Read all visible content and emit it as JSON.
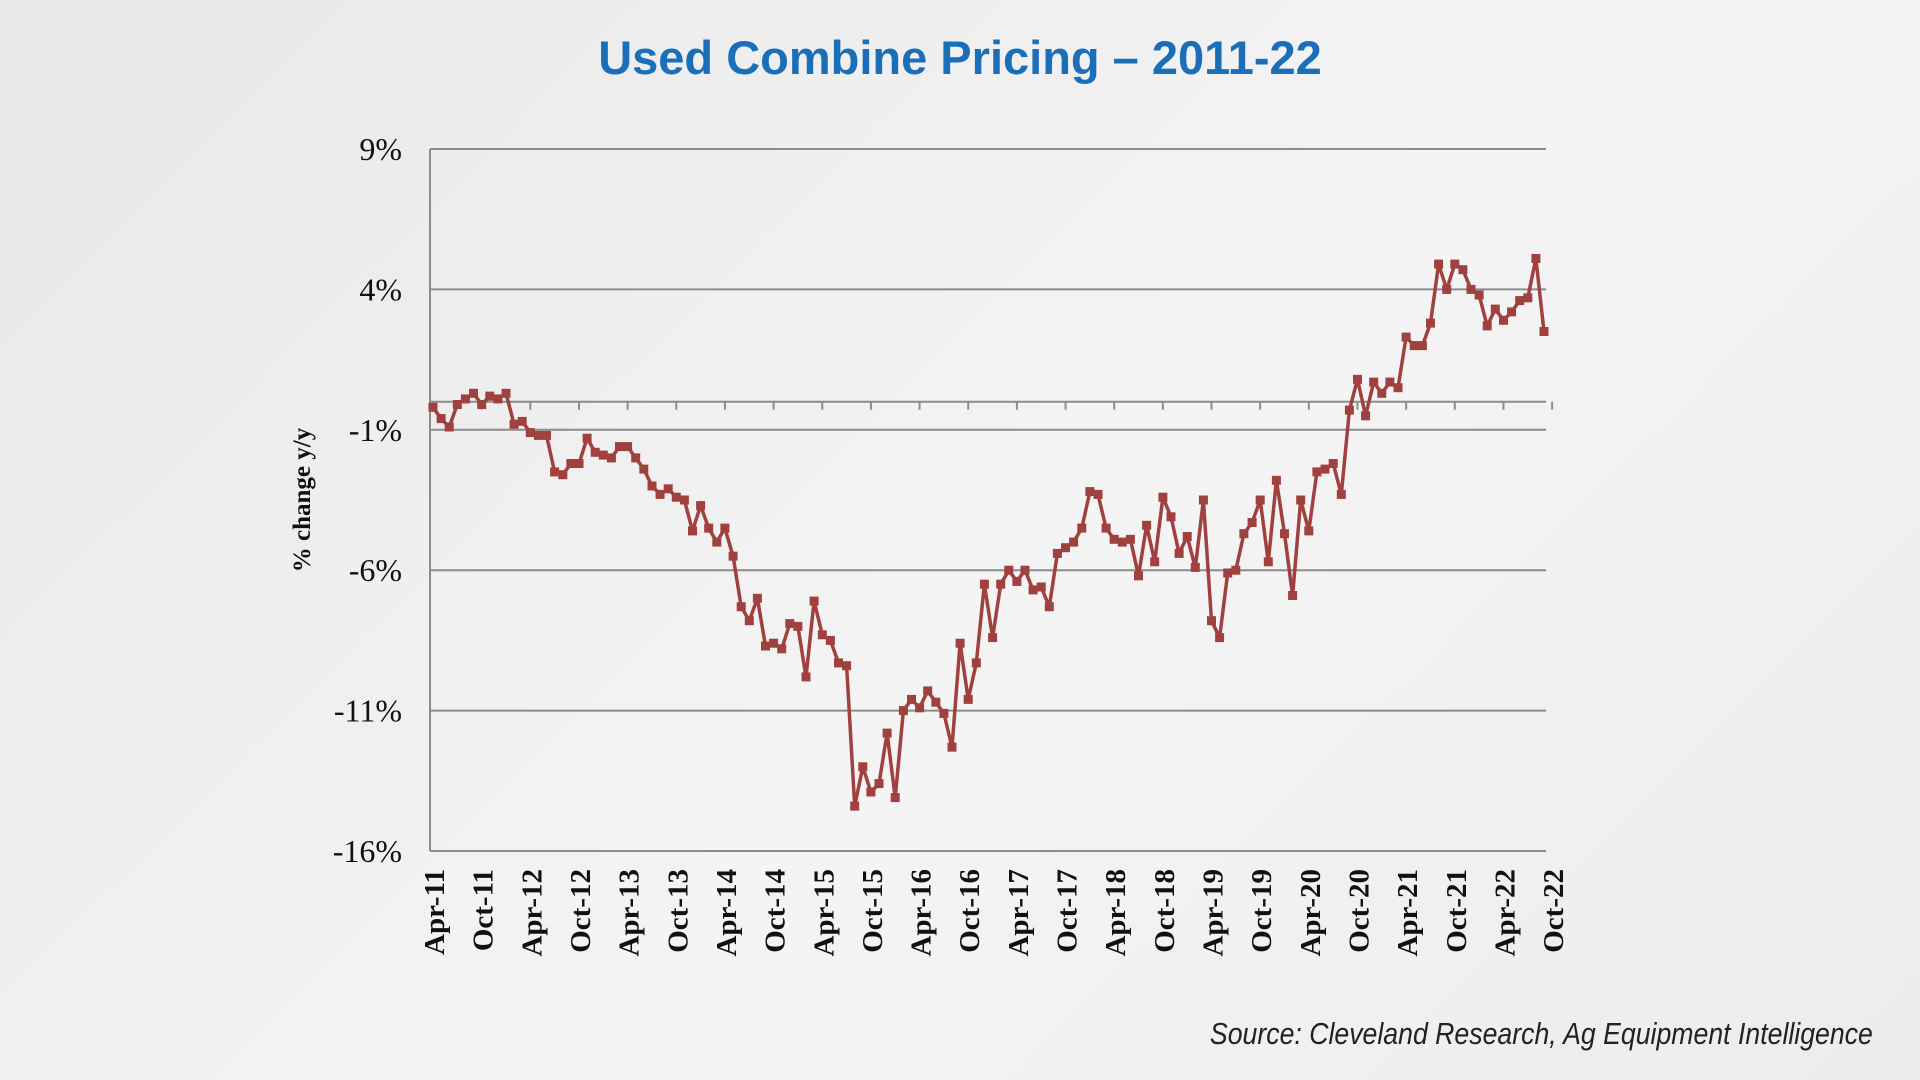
{
  "slide": {
    "title": "Used Combine Pricing – 2011-22",
    "source": "Source: Cleveland Research, Ag Equipment Intelligence"
  },
  "chart_data": {
    "type": "line",
    "title": "",
    "xlabel": "",
    "ylabel": "% change y/y",
    "ylim": [
      -16,
      9
    ],
    "y_ticks": [
      9,
      4,
      -1,
      -6,
      -11,
      -16
    ],
    "y_tick_labels": [
      "9%",
      "4%",
      "-1%",
      "-6%",
      "-11%",
      "-16%"
    ],
    "x_tick_labels": [
      "Apr-11",
      "Oct-11",
      "Apr-12",
      "Oct-12",
      "Apr-13",
      "Oct-13",
      "Apr-14",
      "Oct-14",
      "Apr-15",
      "Oct-15",
      "Apr-16",
      "Oct-16",
      "Apr-17",
      "Oct-17",
      "Apr-18",
      "Oct-18",
      "Apr-19",
      "Oct-19",
      "Apr-20",
      "Oct-20",
      "Apr-21",
      "Oct-21",
      "Apr-22",
      "Oct-22"
    ],
    "x_start": "Apr-11",
    "x_interval": "monthly",
    "grid": "horizontal",
    "legend": "none",
    "series": [
      {
        "color": "#a0413f",
        "marker": "square",
        "values": [
          -0.2,
          -0.6,
          -0.9,
          -0.1,
          0.1,
          0.3,
          -0.1,
          0.2,
          0.1,
          0.3,
          -0.8,
          -0.7,
          -1.1,
          -1.2,
          -1.2,
          -2.5,
          -2.6,
          -2.2,
          -2.2,
          -1.3,
          -1.8,
          -1.9,
          -2.0,
          -1.6,
          -1.6,
          -2.0,
          -2.4,
          -3.0,
          -3.3,
          -3.1,
          -3.4,
          -3.5,
          -4.6,
          -3.7,
          -4.5,
          -5.0,
          -4.5,
          -5.5,
          -7.3,
          -7.8,
          -7.0,
          -8.7,
          -8.6,
          -8.8,
          -7.9,
          -8.0,
          -9.8,
          -7.1,
          -8.3,
          -8.5,
          -9.3,
          -9.4,
          -14.4,
          -13.0,
          -13.9,
          -13.6,
          -11.8,
          -14.1,
          -11.0,
          -10.6,
          -10.9,
          -10.3,
          -10.7,
          -11.1,
          -12.3,
          -8.6,
          -10.6,
          -9.3,
          -6.5,
          -8.4,
          -6.5,
          -6.0,
          -6.4,
          -6.0,
          -6.7,
          -6.6,
          -7.3,
          -5.4,
          -5.2,
          -5.0,
          -4.5,
          -3.2,
          -3.3,
          -4.5,
          -4.9,
          -5.0,
          -4.9,
          -6.2,
          -4.4,
          -5.7,
          -3.4,
          -4.1,
          -5.4,
          -4.8,
          -5.9,
          -3.5,
          -7.8,
          -8.4,
          -6.1,
          -6.0,
          -4.7,
          -4.3,
          -3.5,
          -5.7,
          -2.8,
          -4.7,
          -6.9,
          -3.5,
          -4.6,
          -2.5,
          -2.4,
          -2.2,
          -3.3,
          -0.3,
          0.8,
          -0.5,
          0.7,
          0.3,
          0.7,
          0.5,
          2.3,
          2.0,
          2.0,
          2.8,
          4.9,
          4.0,
          4.9,
          4.7,
          4.0,
          3.8,
          2.7,
          3.3,
          2.9,
          3.2,
          3.6,
          3.7,
          5.1,
          2.5
        ]
      }
    ]
  }
}
